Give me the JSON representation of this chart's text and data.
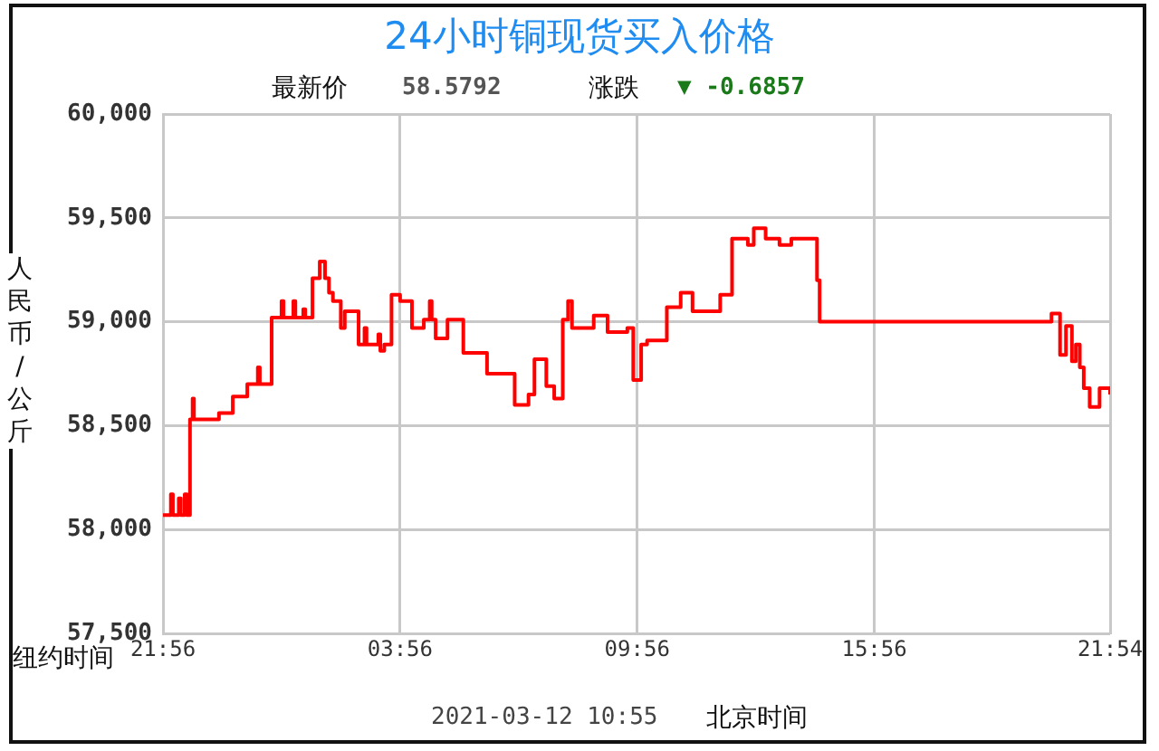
{
  "chart_data": {
    "type": "step",
    "title": "24小时铜现货买入价格",
    "annotations": [
      "最新价",
      "58.5792",
      "涨跌",
      "▼ -0.6857",
      "2021-03-12 10:55",
      "北京时间"
    ],
    "xlabel": "纽约时间",
    "ylabel": "人民币/公斤",
    "x": [
      "2021-03-10T21:56",
      "2021-03-10T22:08",
      "2021-03-10T22:11",
      "2021-03-10T22:20",
      "2021-03-10T22:23",
      "2021-03-10T22:29",
      "2021-03-10T22:32",
      "2021-03-10T22:37",
      "2021-03-10T22:41",
      "2021-03-10T22:43",
      "2021-03-10T23:21",
      "2021-03-10T23:42",
      "2021-03-11T00:04",
      "2021-03-11T00:20",
      "2021-03-11T00:23",
      "2021-03-11T00:41",
      "2021-03-11T00:56",
      "2021-03-11T00:59",
      "2021-03-11T01:14",
      "2021-03-11T01:17",
      "2021-03-11T01:29",
      "2021-03-11T01:32",
      "2021-03-11T01:43",
      "2021-03-11T01:54",
      "2021-03-11T02:02",
      "2021-03-11T02:08",
      "2021-03-11T02:14",
      "2021-03-11T02:26",
      "2021-03-11T02:32",
      "2021-03-11T02:53",
      "2021-03-11T03:02",
      "2021-03-11T03:05",
      "2021-03-11T03:23",
      "2021-03-11T03:26",
      "2021-03-11T03:32",
      "2021-03-11T03:43",
      "2021-03-11T03:56",
      "2021-03-11T04:14",
      "2021-03-11T04:32",
      "2021-03-11T04:41",
      "2021-03-11T04:44",
      "2021-03-11T04:50",
      "2021-03-11T05:08",
      "2021-03-11T05:32",
      "2021-03-11T06:08",
      "2021-03-11T06:50",
      "2021-03-11T07:11",
      "2021-03-11T07:20",
      "2021-03-11T07:38",
      "2021-03-11T07:50",
      "2021-03-11T08:03",
      "2021-03-11T08:11",
      "2021-03-11T08:17",
      "2021-03-11T08:50",
      "2021-03-11T09:11",
      "2021-03-11T09:41",
      "2021-03-11T09:50",
      "2021-03-11T10:02",
      "2021-03-11T10:11",
      "2021-03-11T10:41",
      "2021-03-11T11:02",
      "2021-03-11T11:20",
      "2021-03-11T12:02",
      "2021-03-11T12:20",
      "2021-03-11T12:44",
      "2021-03-11T12:53",
      "2021-03-11T13:11",
      "2021-03-11T13:32",
      "2021-03-11T13:50",
      "2021-03-11T14:29",
      "2021-03-11T14:33",
      "2021-03-11T20:25",
      "2021-03-11T20:38",
      "2021-03-11T20:47",
      "2021-03-11T20:56",
      "2021-03-11T21:02",
      "2021-03-11T21:08",
      "2021-03-11T21:14",
      "2021-03-11T21:23",
      "2021-03-11T21:38",
      "2021-03-11T21:54"
    ],
    "series": [
      {
        "color": "#ff0000",
        "values": [
          58070,
          58170,
          58070,
          58150,
          58070,
          58170,
          58070,
          58530,
          58630,
          58530,
          58560,
          58640,
          58700,
          58780,
          58700,
          59020,
          59100,
          59020,
          59100,
          59020,
          59060,
          59020,
          59210,
          59290,
          59210,
          59140,
          59100,
          58970,
          59050,
          58890,
          58970,
          58890,
          58940,
          58860,
          58890,
          59130,
          59100,
          58970,
          59010,
          59100,
          59010,
          58920,
          59010,
          58850,
          58750,
          58600,
          58650,
          58820,
          58690,
          58630,
          59010,
          59100,
          58970,
          59030,
          58950,
          58970,
          58720,
          58890,
          58910,
          59070,
          59140,
          59050,
          59130,
          59400,
          59370,
          59450,
          59400,
          59370,
          59400,
          59200,
          59000,
          59040,
          58840,
          58980,
          58810,
          58890,
          58780,
          58680,
          58590,
          58680,
          58650
        ]
      }
    ],
    "xlim": [
      "2021-03-10T21:56",
      "2021-03-11T21:54"
    ],
    "xticks": [
      {
        "value": "2021-03-10T21:56",
        "label": "21:56"
      },
      {
        "value": "2021-03-11T03:56",
        "label": "03:56"
      },
      {
        "value": "2021-03-11T09:56",
        "label": "09:56"
      },
      {
        "value": "2021-03-11T15:56",
        "label": "15:56"
      },
      {
        "value": "2021-03-11T21:54",
        "label": "21:54"
      }
    ],
    "ylim": [
      57500,
      60000
    ],
    "yticks": [
      {
        "value": 57500,
        "label": "57,500"
      },
      {
        "value": 58000,
        "label": "58,000"
      },
      {
        "value": 58500,
        "label": "58,500"
      },
      {
        "value": 59000,
        "label": "59,000"
      },
      {
        "value": 59500,
        "label": "59,500"
      },
      {
        "value": 60000,
        "label": "60,000"
      }
    ],
    "grid": true,
    "legend": false
  }
}
